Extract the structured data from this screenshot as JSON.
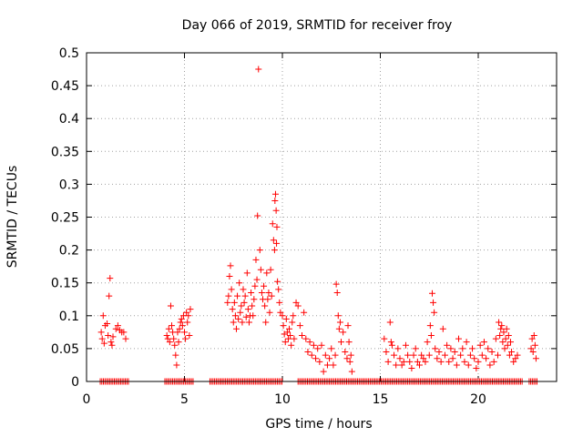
{
  "chart_data": {
    "type": "scatter",
    "title": "Day 066 of 2019, SRMTID for receiver froy",
    "xlabel": "GPS time / hours",
    "ylabel": "SRMTID / TECUs",
    "xlim": [
      0,
      24
    ],
    "ylim": [
      0,
      0.5
    ],
    "x_ticks": [
      0,
      5,
      10,
      15,
      20
    ],
    "x_tick_labels": [
      "0",
      "5",
      "10",
      "15",
      "20"
    ],
    "y_ticks": [
      0,
      0.05,
      0.1,
      0.15,
      0.2,
      0.25,
      0.3,
      0.35,
      0.4,
      0.45,
      0.5
    ],
    "y_tick_labels": [
      "0",
      "0.05",
      "0.1",
      "0.15",
      "0.2",
      "0.25",
      "0.3",
      "0.35",
      "0.4",
      "0.45",
      "0.5"
    ],
    "grid": true,
    "marker": "+",
    "color": "#ff0000",
    "series": [
      {
        "name": "SRMTID",
        "points": [
          [
            0.75,
            0.075
          ],
          [
            0.8,
            0.065
          ],
          [
            0.85,
            0.1
          ],
          [
            0.9,
            0.058
          ],
          [
            0.95,
            0.085
          ],
          [
            1.05,
            0.088
          ],
          [
            1.1,
            0.07
          ],
          [
            1.15,
            0.13
          ],
          [
            1.2,
            0.157
          ],
          [
            1.25,
            0.06
          ],
          [
            1.3,
            0.055
          ],
          [
            1.35,
            0.068
          ],
          [
            1.5,
            0.08
          ],
          [
            1.6,
            0.085
          ],
          [
            1.7,
            0.078
          ],
          [
            1.8,
            0.075
          ],
          [
            1.9,
            0.075
          ],
          [
            2.0,
            0.065
          ],
          [
            4.1,
            0.07
          ],
          [
            4.15,
            0.065
          ],
          [
            4.2,
            0.08
          ],
          [
            4.25,
            0.06
          ],
          [
            4.3,
            0.115
          ],
          [
            4.35,
            0.085
          ],
          [
            4.4,
            0.075
          ],
          [
            4.45,
            0.065
          ],
          [
            4.5,
            0.055
          ],
          [
            4.55,
            0.04
          ],
          [
            4.6,
            0.025
          ],
          [
            4.65,
            0.075
          ],
          [
            4.7,
            0.06
          ],
          [
            4.75,
            0.08
          ],
          [
            4.8,
            0.09
          ],
          [
            4.85,
            0.095
          ],
          [
            4.9,
            0.085
          ],
          [
            4.95,
            0.1
          ],
          [
            5.0,
            0.075
          ],
          [
            5.05,
            0.065
          ],
          [
            5.1,
            0.105
          ],
          [
            5.15,
            0.09
          ],
          [
            5.2,
            0.1
          ],
          [
            5.25,
            0.07
          ],
          [
            5.3,
            0.11
          ],
          [
            7.2,
            0.12
          ],
          [
            7.25,
            0.13
          ],
          [
            7.3,
            0.16
          ],
          [
            7.35,
            0.176
          ],
          [
            7.4,
            0.14
          ],
          [
            7.45,
            0.11
          ],
          [
            7.5,
            0.09
          ],
          [
            7.55,
            0.12
          ],
          [
            7.6,
            0.1
          ],
          [
            7.65,
            0.08
          ],
          [
            7.7,
            0.13
          ],
          [
            7.75,
            0.095
          ],
          [
            7.8,
            0.15
          ],
          [
            7.85,
            0.105
          ],
          [
            7.9,
            0.115
          ],
          [
            7.95,
            0.09
          ],
          [
            8.0,
            0.14
          ],
          [
            8.05,
            0.12
          ],
          [
            8.1,
            0.13
          ],
          [
            8.15,
            0.098
          ],
          [
            8.2,
            0.165
          ],
          [
            8.25,
            0.11
          ],
          [
            8.3,
            0.09
          ],
          [
            8.35,
            0.1
          ],
          [
            8.4,
            0.135
          ],
          [
            8.45,
            0.115
          ],
          [
            8.5,
            0.1
          ],
          [
            8.55,
            0.125
          ],
          [
            8.6,
            0.145
          ],
          [
            8.65,
            0.185
          ],
          [
            8.7,
            0.155
          ],
          [
            8.73,
            0.252
          ],
          [
            8.78,
            0.475
          ],
          [
            8.85,
            0.2
          ],
          [
            8.9,
            0.17
          ],
          [
            8.95,
            0.135
          ],
          [
            9.0,
            0.125
          ],
          [
            9.05,
            0.145
          ],
          [
            9.1,
            0.115
          ],
          [
            9.15,
            0.09
          ],
          [
            9.2,
            0.165
          ],
          [
            9.25,
            0.125
          ],
          [
            9.3,
            0.135
          ],
          [
            9.35,
            0.105
          ],
          [
            9.4,
            0.17
          ],
          [
            9.45,
            0.13
          ],
          [
            9.5,
            0.24
          ],
          [
            9.55,
            0.215
          ],
          [
            9.6,
            0.2
          ],
          [
            9.62,
            0.275
          ],
          [
            9.65,
            0.285
          ],
          [
            9.68,
            0.26
          ],
          [
            9.7,
            0.21
          ],
          [
            9.72,
            0.235
          ],
          [
            9.75,
            0.152
          ],
          [
            9.8,
            0.14
          ],
          [
            9.85,
            0.12
          ],
          [
            9.9,
            0.105
          ],
          [
            10.0,
            0.1
          ],
          [
            10.05,
            0.085
          ],
          [
            10.1,
            0.072
          ],
          [
            10.15,
            0.06
          ],
          [
            10.2,
            0.095
          ],
          [
            10.25,
            0.075
          ],
          [
            10.3,
            0.065
          ],
          [
            10.35,
            0.08
          ],
          [
            10.4,
            0.07
          ],
          [
            10.45,
            0.055
          ],
          [
            10.5,
            0.09
          ],
          [
            10.55,
            0.1
          ],
          [
            10.6,
            0.065
          ],
          [
            10.7,
            0.12
          ],
          [
            10.8,
            0.115
          ],
          [
            10.9,
            0.085
          ],
          [
            11.0,
            0.07
          ],
          [
            11.1,
            0.105
          ],
          [
            11.2,
            0.065
          ],
          [
            11.3,
            0.045
          ],
          [
            11.4,
            0.06
          ],
          [
            11.5,
            0.04
          ],
          [
            11.6,
            0.055
          ],
          [
            11.7,
            0.035
          ],
          [
            11.8,
            0.05
          ],
          [
            11.9,
            0.03
          ],
          [
            12.0,
            0.055
          ],
          [
            12.1,
            0.015
          ],
          [
            12.2,
            0.04
          ],
          [
            12.3,
            0.025
          ],
          [
            12.4,
            0.035
          ],
          [
            12.5,
            0.05
          ],
          [
            12.6,
            0.025
          ],
          [
            12.7,
            0.04
          ],
          [
            12.75,
            0.148
          ],
          [
            12.8,
            0.135
          ],
          [
            12.85,
            0.1
          ],
          [
            12.9,
            0.08
          ],
          [
            12.95,
            0.09
          ],
          [
            13.0,
            0.06
          ],
          [
            13.1,
            0.075
          ],
          [
            13.2,
            0.045
          ],
          [
            13.3,
            0.035
          ],
          [
            13.35,
            0.085
          ],
          [
            13.4,
            0.06
          ],
          [
            13.45,
            0.03
          ],
          [
            13.5,
            0.04
          ],
          [
            13.55,
            0.015
          ],
          [
            15.2,
            0.065
          ],
          [
            15.3,
            0.045
          ],
          [
            15.4,
            0.03
          ],
          [
            15.5,
            0.09
          ],
          [
            15.55,
            0.06
          ],
          [
            15.6,
            0.055
          ],
          [
            15.7,
            0.04
          ],
          [
            15.8,
            0.025
          ],
          [
            15.9,
            0.05
          ],
          [
            16.0,
            0.035
          ],
          [
            16.1,
            0.025
          ],
          [
            16.2,
            0.03
          ],
          [
            16.3,
            0.055
          ],
          [
            16.4,
            0.04
          ],
          [
            16.5,
            0.03
          ],
          [
            16.6,
            0.02
          ],
          [
            16.7,
            0.04
          ],
          [
            16.8,
            0.05
          ],
          [
            16.9,
            0.03
          ],
          [
            17.0,
            0.025
          ],
          [
            17.1,
            0.04
          ],
          [
            17.2,
            0.035
          ],
          [
            17.3,
            0.03
          ],
          [
            17.4,
            0.06
          ],
          [
            17.5,
            0.04
          ],
          [
            17.55,
            0.085
          ],
          [
            17.6,
            0.07
          ],
          [
            17.65,
            0.134
          ],
          [
            17.7,
            0.12
          ],
          [
            17.75,
            0.105
          ],
          [
            17.8,
            0.05
          ],
          [
            17.9,
            0.035
          ],
          [
            18.0,
            0.045
          ],
          [
            18.1,
            0.03
          ],
          [
            18.2,
            0.08
          ],
          [
            18.3,
            0.04
          ],
          [
            18.4,
            0.055
          ],
          [
            18.5,
            0.03
          ],
          [
            18.6,
            0.05
          ],
          [
            18.7,
            0.035
          ],
          [
            18.8,
            0.045
          ],
          [
            18.9,
            0.025
          ],
          [
            19.0,
            0.065
          ],
          [
            19.1,
            0.04
          ],
          [
            19.2,
            0.05
          ],
          [
            19.3,
            0.03
          ],
          [
            19.4,
            0.06
          ],
          [
            19.5,
            0.025
          ],
          [
            19.6,
            0.04
          ],
          [
            19.7,
            0.05
          ],
          [
            19.8,
            0.035
          ],
          [
            19.9,
            0.02
          ],
          [
            20.0,
            0.03
          ],
          [
            20.1,
            0.055
          ],
          [
            20.2,
            0.04
          ],
          [
            20.3,
            0.06
          ],
          [
            20.4,
            0.035
          ],
          [
            20.5,
            0.05
          ],
          [
            20.6,
            0.025
          ],
          [
            20.7,
            0.045
          ],
          [
            20.8,
            0.03
          ],
          [
            20.9,
            0.065
          ],
          [
            21.0,
            0.04
          ],
          [
            21.05,
            0.09
          ],
          [
            21.1,
            0.07
          ],
          [
            21.15,
            0.08
          ],
          [
            21.2,
            0.085
          ],
          [
            21.25,
            0.06
          ],
          [
            21.3,
            0.075
          ],
          [
            21.35,
            0.05
          ],
          [
            21.4,
            0.065
          ],
          [
            21.45,
            0.08
          ],
          [
            21.5,
            0.055
          ],
          [
            21.55,
            0.07
          ],
          [
            21.6,
            0.04
          ],
          [
            21.65,
            0.06
          ],
          [
            21.7,
            0.045
          ],
          [
            21.8,
            0.03
          ],
          [
            21.9,
            0.035
          ],
          [
            22.0,
            0.04
          ],
          [
            22.7,
            0.05
          ],
          [
            22.75,
            0.065
          ],
          [
            22.8,
            0.045
          ],
          [
            22.85,
            0.07
          ],
          [
            22.9,
            0.055
          ],
          [
            22.95,
            0.035
          ]
        ]
      }
    ],
    "zero_segments": [
      [
        0.7,
        2.2
      ],
      [
        4.0,
        5.5
      ],
      [
        6.3,
        10.0
      ],
      [
        10.8,
        22.3
      ],
      [
        22.6,
        23.0
      ]
    ]
  }
}
